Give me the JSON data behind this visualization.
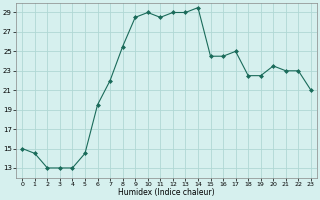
{
  "x": [
    0,
    1,
    2,
    3,
    4,
    5,
    6,
    7,
    8,
    9,
    10,
    11,
    12,
    13,
    14,
    15,
    16,
    17,
    18,
    19,
    20,
    21,
    22,
    23
  ],
  "y": [
    15,
    14.5,
    13,
    13,
    13,
    14.5,
    19.5,
    22,
    25.5,
    28.5,
    29,
    28.5,
    29,
    29,
    29.5,
    24.5,
    24.5,
    25,
    22.5,
    22.5,
    23.5,
    23,
    23,
    21
  ],
  "line_color": "#1a6b5a",
  "marker_color": "#1a6b5a",
  "bg_color": "#d6f0ee",
  "grid_color": "#b0d8d4",
  "xlabel": "Humidex (Indice chaleur)",
  "ylim": [
    12,
    30
  ],
  "xlim": [
    -0.5,
    23.5
  ],
  "yticks": [
    13,
    15,
    17,
    19,
    21,
    23,
    25,
    27,
    29
  ],
  "xticks": [
    0,
    1,
    2,
    3,
    4,
    5,
    6,
    7,
    8,
    9,
    10,
    11,
    12,
    13,
    14,
    15,
    16,
    17,
    18,
    19,
    20,
    21,
    22,
    23
  ]
}
